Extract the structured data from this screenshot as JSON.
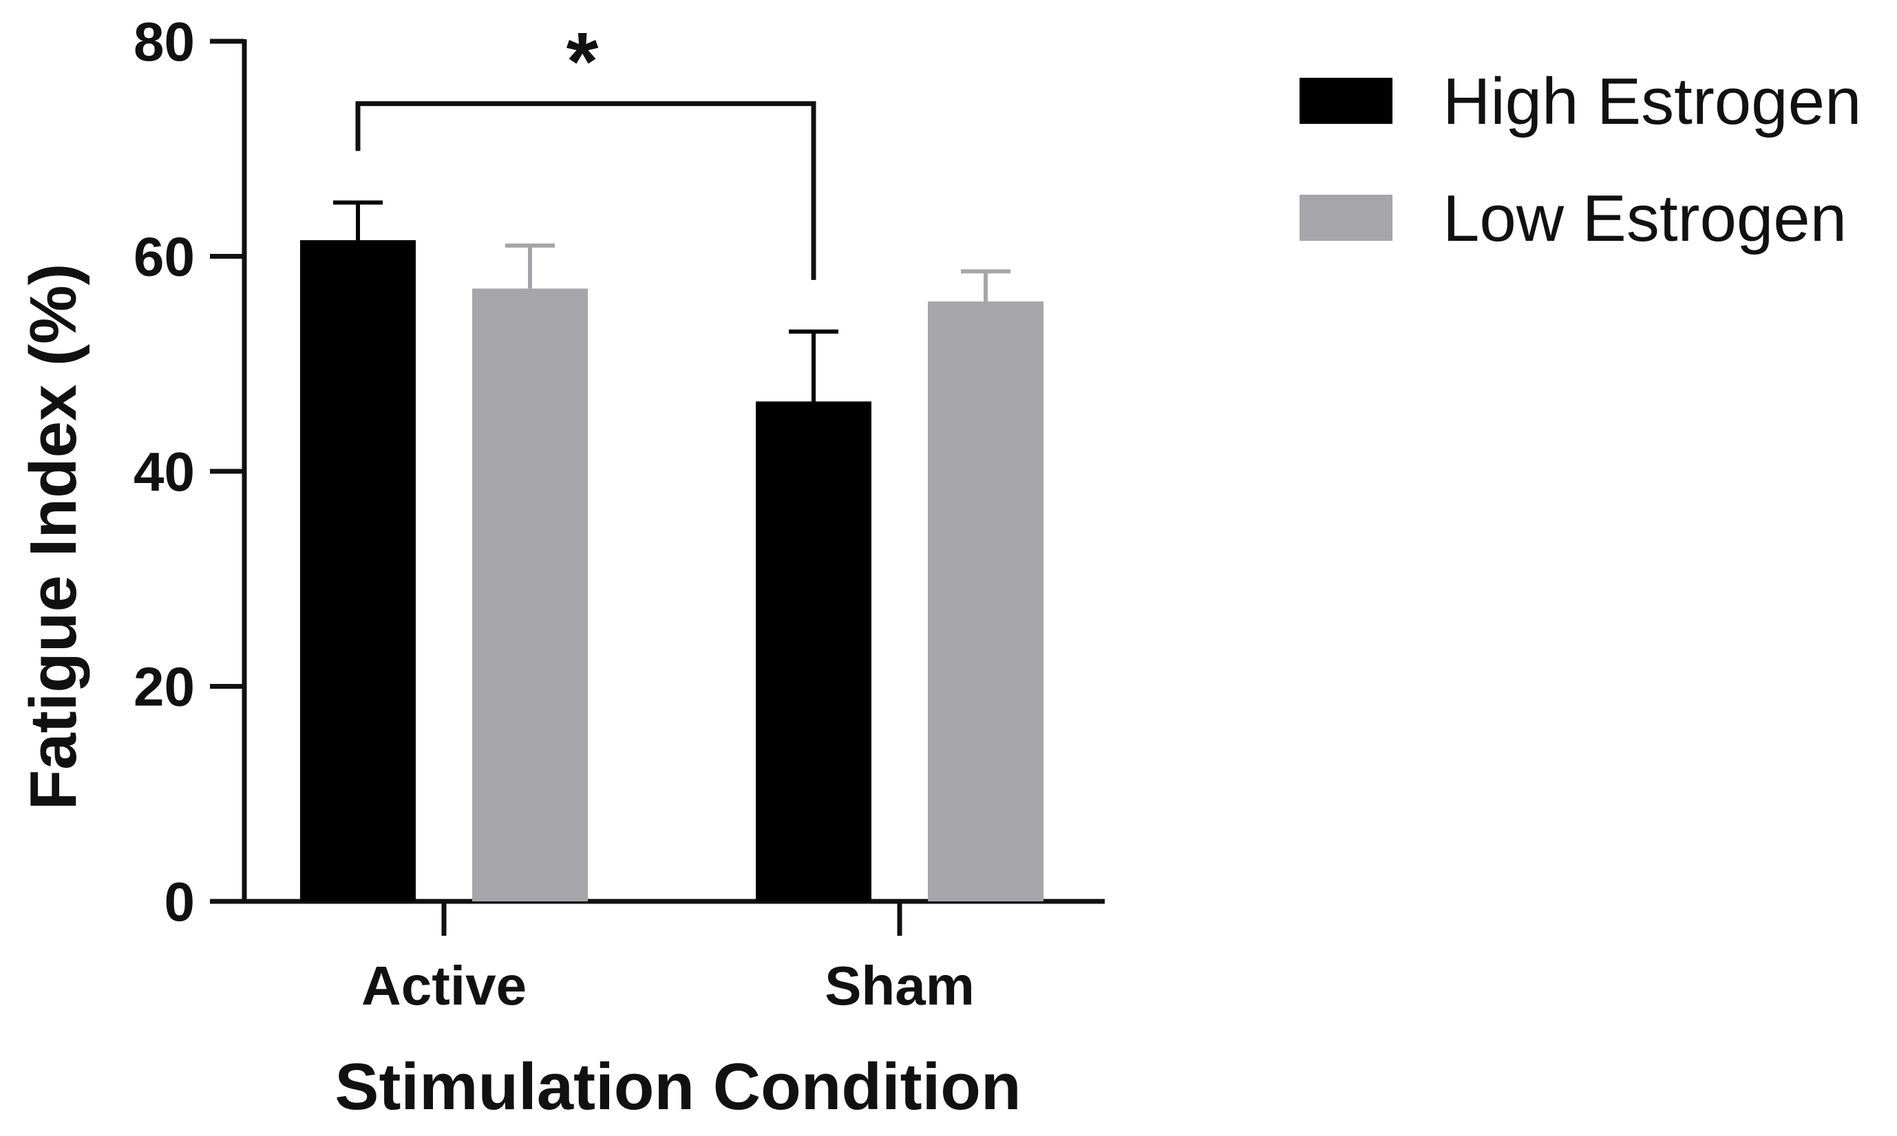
{
  "chart_data": {
    "type": "bar",
    "title": "",
    "xlabel": "Stimulation Condition",
    "ylabel": "Fatigue Index (%)",
    "ylim": [
      0,
      80
    ],
    "yticks": [
      "0",
      "20",
      "40",
      "60",
      "80"
    ],
    "categories": [
      "Active",
      "Sham"
    ],
    "series": [
      {
        "name": "High Estrogen",
        "color": "#000000",
        "values": [
          61.5,
          46.5
        ],
        "errors": [
          3.5,
          6.5
        ]
      },
      {
        "name": "Low Estrogen",
        "color": "#a6a6aa",
        "values": [
          57.0,
          55.8
        ],
        "errors": [
          4.0,
          2.8
        ]
      }
    ],
    "significance": {
      "label": "*",
      "between": [
        "Active / High Estrogen",
        "Sham / High Estrogen"
      ]
    },
    "legend_position": "top-right",
    "grid": false
  }
}
